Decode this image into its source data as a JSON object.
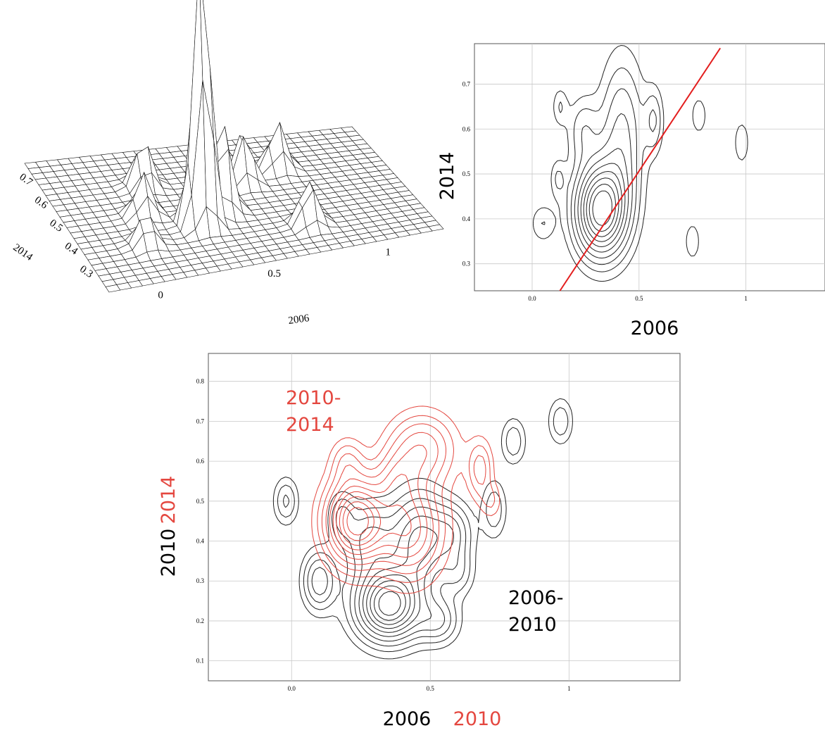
{
  "chart_data": [
    {
      "type": "surface",
      "x_label": "2006",
      "y_label": "2014",
      "x_ticks": [
        "0",
        "0.5",
        "1"
      ],
      "y_ticks": [
        "0.7",
        "0.6",
        "0.5",
        "0.4",
        "0.3"
      ],
      "peaks": [
        {
          "x": 0.33,
          "y": 0.43,
          "h": 1.0
        },
        {
          "x": 0.45,
          "y": 0.47,
          "h": 0.35
        },
        {
          "x": 0.2,
          "y": 0.62,
          "h": 0.18
        },
        {
          "x": 0.62,
          "y": 0.58,
          "h": 0.2
        },
        {
          "x": 0.8,
          "y": 0.62,
          "h": 0.18
        },
        {
          "x": 0.12,
          "y": 0.5,
          "h": 0.16
        },
        {
          "x": 0.05,
          "y": 0.38,
          "h": 0.12
        },
        {
          "x": 0.75,
          "y": 0.35,
          "h": 0.17
        }
      ]
    },
    {
      "type": "contour",
      "x_label": "2006",
      "y_label": "2014",
      "xlim": [
        -0.27,
        1.37
      ],
      "ylim": [
        0.24,
        0.79
      ],
      "x_ticks": [
        {
          "v": 0,
          "label": "0.0"
        },
        {
          "v": 0.5,
          "label": "0.5"
        },
        {
          "v": 1,
          "label": "1"
        }
      ],
      "y_ticks": [
        {
          "v": 0.3,
          "label": "0.3"
        },
        {
          "v": 0.4,
          "label": "0.4"
        },
        {
          "v": 0.5,
          "label": "0.5"
        },
        {
          "v": 0.6,
          "label": "0.6"
        },
        {
          "v": 0.7,
          "label": "0.7"
        }
      ],
      "regression_line": {
        "x1": 0.13,
        "y1": 0.24,
        "x2": 0.88,
        "y2": 0.78,
        "color": "#e31e1e"
      },
      "peaks": [
        {
          "x": 0.32,
          "y": 0.42,
          "sx": 0.08,
          "sy": 0.07,
          "h": 1.0
        },
        {
          "x": 0.42,
          "y": 0.58,
          "sx": 0.07,
          "sy": 0.12,
          "h": 0.35
        },
        {
          "x": 0.24,
          "y": 0.6,
          "sx": 0.05,
          "sy": 0.05,
          "h": 0.2
        },
        {
          "x": 0.57,
          "y": 0.62,
          "sx": 0.03,
          "sy": 0.05,
          "h": 0.22
        },
        {
          "x": 0.13,
          "y": 0.65,
          "sx": 0.025,
          "sy": 0.03,
          "h": 0.15
        },
        {
          "x": 0.12,
          "y": 0.49,
          "sx": 0.025,
          "sy": 0.03,
          "h": 0.15
        },
        {
          "x": 0.05,
          "y": 0.39,
          "sx": 0.04,
          "sy": 0.03,
          "h": 0.15
        },
        {
          "x": 0.78,
          "y": 0.63,
          "sx": 0.025,
          "sy": 0.03,
          "h": 0.15
        },
        {
          "x": 0.98,
          "y": 0.57,
          "sx": 0.025,
          "sy": 0.035,
          "h": 0.15
        },
        {
          "x": 0.75,
          "y": 0.35,
          "sx": 0.025,
          "sy": 0.03,
          "h": 0.15
        }
      ]
    },
    {
      "type": "contour",
      "x_label": "2006",
      "x_label_2": "2010",
      "y_label": "2010",
      "y_label_2": "2014",
      "xlim": [
        -0.3,
        1.4
      ],
      "ylim": [
        0.05,
        0.87
      ],
      "x_ticks": [
        {
          "v": 0,
          "label": "0.0"
        },
        {
          "v": 0.5,
          "label": "0.5"
        },
        {
          "v": 1,
          "label": "1"
        }
      ],
      "y_ticks": [
        {
          "v": 0.1,
          "label": "0.1"
        },
        {
          "v": 0.2,
          "label": "0.2"
        },
        {
          "v": 0.3,
          "label": "0.3"
        },
        {
          "v": 0.4,
          "label": "0.4"
        },
        {
          "v": 0.5,
          "label": "0.5"
        },
        {
          "v": 0.6,
          "label": "0.6"
        },
        {
          "v": 0.7,
          "label": "0.7"
        },
        {
          "v": 0.8,
          "label": "0.8"
        }
      ],
      "series": [
        {
          "name": "2006-2010",
          "label_lines": [
            "2006-",
            "2010"
          ],
          "color": "#222222",
          "peaks": [
            {
              "x": 0.35,
              "y": 0.24,
              "sx": 0.08,
              "sy": 0.06,
              "h": 1.0
            },
            {
              "x": 0.46,
              "y": 0.4,
              "sx": 0.07,
              "sy": 0.08,
              "h": 0.55
            },
            {
              "x": 0.28,
              "y": 0.4,
              "sx": 0.06,
              "sy": 0.06,
              "h": 0.35
            },
            {
              "x": 0.58,
              "y": 0.42,
              "sx": 0.05,
              "sy": 0.05,
              "h": 0.3
            },
            {
              "x": 0.53,
              "y": 0.2,
              "sx": 0.05,
              "sy": 0.04,
              "h": 0.3
            },
            {
              "x": 0.1,
              "y": 0.3,
              "sx": 0.04,
              "sy": 0.05,
              "h": 0.4
            },
            {
              "x": -0.02,
              "y": 0.5,
              "sx": 0.03,
              "sy": 0.04,
              "h": 0.25
            },
            {
              "x": 0.18,
              "y": 0.46,
              "sx": 0.03,
              "sy": 0.04,
              "h": 0.25
            },
            {
              "x": 0.73,
              "y": 0.48,
              "sx": 0.03,
              "sy": 0.05,
              "h": 0.22
            },
            {
              "x": 0.8,
              "y": 0.65,
              "sx": 0.03,
              "sy": 0.04,
              "h": 0.22
            },
            {
              "x": 0.97,
              "y": 0.7,
              "sx": 0.03,
              "sy": 0.04,
              "h": 0.22
            },
            {
              "x": 0.6,
              "y": 0.32,
              "sx": 0.04,
              "sy": 0.04,
              "h": 0.2
            }
          ]
        },
        {
          "name": "2010-2014",
          "label_lines": [
            "2010-",
            "2014"
          ],
          "color": "#e4473f",
          "peaks": [
            {
              "x": 0.23,
              "y": 0.45,
              "sx": 0.07,
              "sy": 0.07,
              "h": 1.0
            },
            {
              "x": 0.42,
              "y": 0.43,
              "sx": 0.08,
              "sy": 0.08,
              "h": 0.6
            },
            {
              "x": 0.47,
              "y": 0.63,
              "sx": 0.08,
              "sy": 0.06,
              "h": 0.4
            },
            {
              "x": 0.38,
              "y": 0.55,
              "sx": 0.05,
              "sy": 0.05,
              "h": 0.25
            },
            {
              "x": 0.68,
              "y": 0.58,
              "sx": 0.03,
              "sy": 0.05,
              "h": 0.28
            },
            {
              "x": 0.72,
              "y": 0.5,
              "sx": 0.025,
              "sy": 0.03,
              "h": 0.15
            },
            {
              "x": 0.2,
              "y": 0.6,
              "sx": 0.04,
              "sy": 0.04,
              "h": 0.2
            }
          ]
        }
      ]
    }
  ]
}
